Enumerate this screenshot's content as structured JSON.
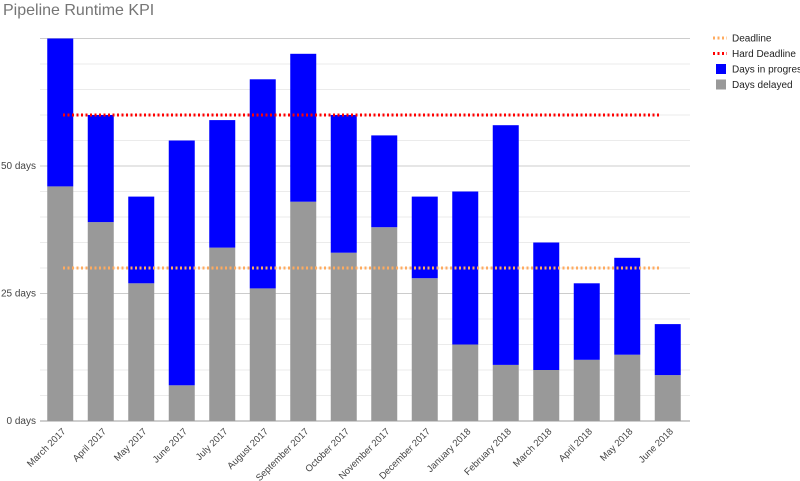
{
  "chart_data": {
    "type": "bar",
    "stacked": true,
    "title": "Pipeline Runtime KPI",
    "xlabel": "",
    "ylabel": "",
    "ylim": [
      0,
      75
    ],
    "y_ticks": [
      {
        "value": 0,
        "label": "0 days"
      },
      {
        "value": 25,
        "label": "25 days"
      },
      {
        "value": 50,
        "label": "50 days"
      }
    ],
    "grid": true,
    "legend_position": "right",
    "categories": [
      "March 2017",
      "April 2017",
      "May 2017",
      "June 2017",
      "July 2017",
      "August 2017",
      "September 2017",
      "October 2017",
      "November 2017",
      "December 2017",
      "January 2018",
      "February 2018",
      "March 2018",
      "April 2018",
      "May 2018",
      "June 2018"
    ],
    "series": [
      {
        "name": "Days delayed",
        "color": "#999999",
        "values": [
          46,
          39,
          27,
          7,
          34,
          26,
          43,
          33,
          38,
          28,
          15,
          11,
          10,
          12,
          13,
          9
        ]
      },
      {
        "name": "Days in progress",
        "color": "#0000ff",
        "values": [
          29,
          21,
          17,
          48,
          25,
          41,
          29,
          27,
          18,
          16,
          30,
          47,
          25,
          15,
          19,
          10
        ]
      }
    ],
    "reference_lines": [
      {
        "name": "Deadline",
        "value": 30,
        "color": "#ffab5e"
      },
      {
        "name": "Hard Deadline",
        "value": 60,
        "color": "#ff0000"
      }
    ],
    "legend_order": [
      "Deadline",
      "Hard Deadline",
      "Days in progress",
      "Days delayed"
    ]
  }
}
